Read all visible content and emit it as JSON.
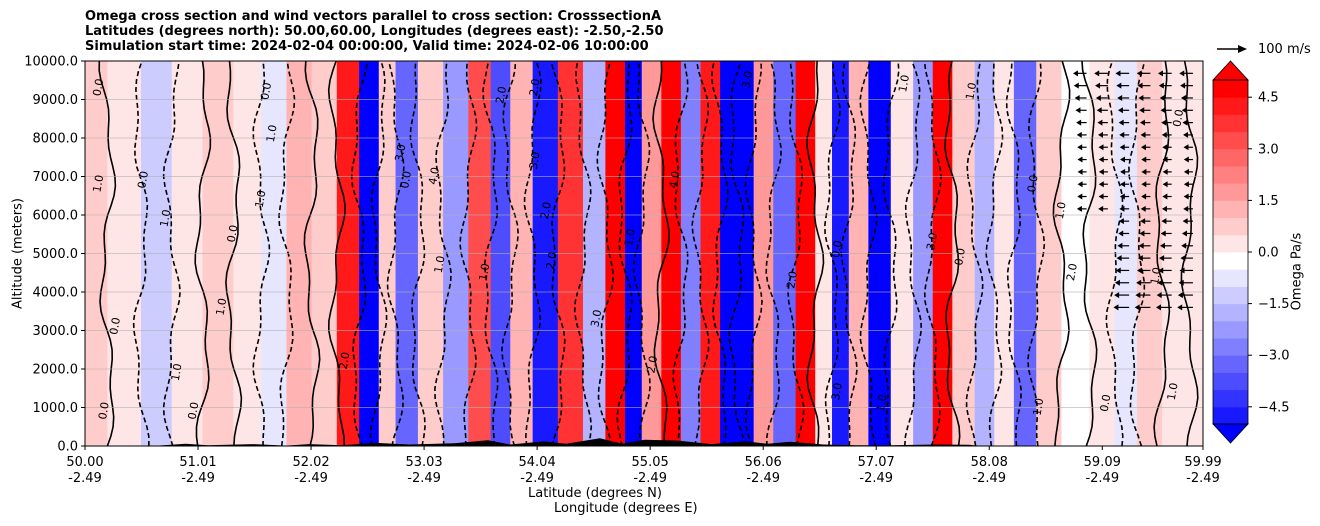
{
  "chart_data": {
    "type": "heatmap",
    "title_lines": [
      "Omega cross section and wind vectors parallel to cross section: CrosssectionA",
      "Latitudes (degrees north): 50.00,60.00, Longitudes (degrees east): -2.50,-2.50",
      "Simulation start time: 2024-02-04 00:00:00, Valid time: 2024-02-06 10:00:00"
    ],
    "xlabel": "Latitude (degrees N)",
    "xlabel2": "Longitude (degrees E)",
    "ylabel": "Altitude (meters)",
    "colorbar_label": "Omega Pa/s",
    "quiver_key": "100 m/s",
    "xlim": [
      50.0,
      59.99
    ],
    "ylim": [
      0,
      10000
    ],
    "x_ticks": [
      {
        "lat": "50.00",
        "lon": "-2.49",
        "value": 50.0
      },
      {
        "lat": "51.01",
        "lon": "-2.49",
        "value": 51.01
      },
      {
        "lat": "52.02",
        "lon": "-2.49",
        "value": 52.02
      },
      {
        "lat": "53.03",
        "lon": "-2.49",
        "value": 53.03
      },
      {
        "lat": "54.04",
        "lon": "-2.49",
        "value": 54.04
      },
      {
        "lat": "55.05",
        "lon": "-2.49",
        "value": 55.05
      },
      {
        "lat": "56.06",
        "lon": "-2.49",
        "value": 56.06
      },
      {
        "lat": "57.07",
        "lon": "-2.49",
        "value": 57.07
      },
      {
        "lat": "58.08",
        "lon": "-2.49",
        "value": 58.08
      },
      {
        "lat": "59.09",
        "lon": "-2.49",
        "value": 59.09
      },
      {
        "lat": "59.99",
        "lon": "-2.49",
        "value": 59.99
      }
    ],
    "y_ticks": [
      {
        "label": "0.0",
        "value": 0
      },
      {
        "label": "1000.0",
        "value": 1000
      },
      {
        "label": "2000.0",
        "value": 2000
      },
      {
        "label": "3000.0",
        "value": 3000
      },
      {
        "label": "4000.0",
        "value": 4000
      },
      {
        "label": "5000.0",
        "value": 5000
      },
      {
        "label": "6000.0",
        "value": 6000
      },
      {
        "label": "7000.0",
        "value": 7000
      },
      {
        "label": "8000.0",
        "value": 8000
      },
      {
        "label": "9000.0",
        "value": 9000
      },
      {
        "label": "10000.0",
        "value": 10000
      }
    ],
    "colorbar_ticks": [
      {
        "label": "4.5",
        "value": 4.5
      },
      {
        "label": "3.0",
        "value": 3.0
      },
      {
        "label": "1.5",
        "value": 1.5
      },
      {
        "label": "0.0",
        "value": 0.0
      },
      {
        "label": "−1.5",
        "value": -1.5
      },
      {
        "label": "−3.0",
        "value": -3.0
      },
      {
        "label": "−4.5",
        "value": -4.5
      }
    ],
    "colorbar_range": [
      -5.0,
      5.0
    ],
    "colormap": "bwr",
    "grid": "horizontal",
    "bands": [
      {
        "lat": 50.05,
        "value": 1.0
      },
      {
        "lat": 50.35,
        "value": 0.4
      },
      {
        "lat": 50.65,
        "value": -0.8
      },
      {
        "lat": 50.9,
        "value": 0.6
      },
      {
        "lat": 51.2,
        "value": 1.2
      },
      {
        "lat": 51.45,
        "value": 0.3
      },
      {
        "lat": 51.7,
        "value": -0.6
      },
      {
        "lat": 51.9,
        "value": 1.6
      },
      {
        "lat": 52.15,
        "value": 0.8
      },
      {
        "lat": 52.35,
        "value": 4.6
      },
      {
        "lat": 52.55,
        "value": -5.0
      },
      {
        "lat": 52.7,
        "value": 1.0
      },
      {
        "lat": 52.85,
        "value": -3.0
      },
      {
        "lat": 53.1,
        "value": 0.8
      },
      {
        "lat": 53.3,
        "value": -1.8
      },
      {
        "lat": 53.55,
        "value": 3.5
      },
      {
        "lat": 53.7,
        "value": -3.5
      },
      {
        "lat": 53.9,
        "value": 1.5
      },
      {
        "lat": 54.1,
        "value": -4.5
      },
      {
        "lat": 54.35,
        "value": 4.0
      },
      {
        "lat": 54.55,
        "value": -1.5
      },
      {
        "lat": 54.75,
        "value": 5.0
      },
      {
        "lat": 54.9,
        "value": -5.0
      },
      {
        "lat": 55.05,
        "value": 2.0
      },
      {
        "lat": 55.25,
        "value": 5.0
      },
      {
        "lat": 55.4,
        "value": -2.5
      },
      {
        "lat": 55.6,
        "value": 4.5
      },
      {
        "lat": 55.75,
        "value": -5.0
      },
      {
        "lat": 55.9,
        "value": -5.0
      },
      {
        "lat": 56.05,
        "value": 2.0
      },
      {
        "lat": 56.25,
        "value": -3.0
      },
      {
        "lat": 56.45,
        "value": 5.0
      },
      {
        "lat": 56.6,
        "value": 0.5
      },
      {
        "lat": 56.75,
        "value": -4.5
      },
      {
        "lat": 56.9,
        "value": 1.5
      },
      {
        "lat": 57.1,
        "value": -5.0
      },
      {
        "lat": 57.3,
        "value": 0.6
      },
      {
        "lat": 57.5,
        "value": -2.0
      },
      {
        "lat": 57.65,
        "value": 5.0
      },
      {
        "lat": 57.85,
        "value": 0.8
      },
      {
        "lat": 58.05,
        "value": -1.5
      },
      {
        "lat": 58.2,
        "value": 0.5
      },
      {
        "lat": 58.4,
        "value": -2.8
      },
      {
        "lat": 58.6,
        "value": 1.2
      },
      {
        "lat": 58.85,
        "value": 0.2
      },
      {
        "lat": 59.1,
        "value": 0.6
      },
      {
        "lat": 59.3,
        "value": -0.3
      },
      {
        "lat": 59.5,
        "value": 1.0
      },
      {
        "lat": 59.75,
        "value": 0.3
      },
      {
        "lat": 59.99,
        "value": 0.5
      }
    ],
    "contour_labels": [
      {
        "lat": 50.15,
        "alt": 9300,
        "text": "0.0"
      },
      {
        "lat": 50.15,
        "alt": 6800,
        "text": "1.0"
      },
      {
        "lat": 50.3,
        "alt": 3100,
        "text": "0.0"
      },
      {
        "lat": 50.2,
        "alt": 900,
        "text": "0.0"
      },
      {
        "lat": 50.55,
        "alt": 6900,
        "text": "0.0"
      },
      {
        "lat": 50.75,
        "alt": 5900,
        "text": "1.0"
      },
      {
        "lat": 50.85,
        "alt": 1900,
        "text": "1.0"
      },
      {
        "lat": 51.0,
        "alt": 900,
        "text": "0.0"
      },
      {
        "lat": 51.25,
        "alt": 3600,
        "text": "1.0"
      },
      {
        "lat": 51.35,
        "alt": 5500,
        "text": "0.0"
      },
      {
        "lat": 51.65,
        "alt": 9200,
        "text": "0.0"
      },
      {
        "lat": 51.6,
        "alt": 6400,
        "text": "1.0"
      },
      {
        "lat": 51.7,
        "alt": 8100,
        "text": "1.0"
      },
      {
        "lat": 52.35,
        "alt": 2200,
        "text": "2.0"
      },
      {
        "lat": 52.85,
        "alt": 7600,
        "text": "3.0"
      },
      {
        "lat": 52.9,
        "alt": 6900,
        "text": "0.0"
      },
      {
        "lat": 53.15,
        "alt": 7000,
        "text": "4.0"
      },
      {
        "lat": 53.2,
        "alt": 4700,
        "text": "1.0"
      },
      {
        "lat": 53.6,
        "alt": 4500,
        "text": "1.0"
      },
      {
        "lat": 53.75,
        "alt": 9100,
        "text": "2.0"
      },
      {
        "lat": 54.05,
        "alt": 9300,
        "text": "2.0"
      },
      {
        "lat": 54.05,
        "alt": 7400,
        "text": "3.0"
      },
      {
        "lat": 54.15,
        "alt": 6100,
        "text": "2.0"
      },
      {
        "lat": 54.2,
        "alt": 4800,
        "text": "2.0"
      },
      {
        "lat": 54.6,
        "alt": 3300,
        "text": "3.0"
      },
      {
        "lat": 54.9,
        "alt": 5400,
        "text": "1.0"
      },
      {
        "lat": 55.3,
        "alt": 6900,
        "text": "4.0"
      },
      {
        "lat": 55.1,
        "alt": 2100,
        "text": "2.0"
      },
      {
        "lat": 55.95,
        "alt": 9500,
        "text": "3.0"
      },
      {
        "lat": 56.35,
        "alt": 4300,
        "text": "2.0"
      },
      {
        "lat": 56.75,
        "alt": 5100,
        "text": "0.0"
      },
      {
        "lat": 56.75,
        "alt": 1400,
        "text": "3.0"
      },
      {
        "lat": 57.15,
        "alt": 1100,
        "text": "1.0"
      },
      {
        "lat": 57.35,
        "alt": 9400,
        "text": "1.0"
      },
      {
        "lat": 57.6,
        "alt": 5300,
        "text": "3.0"
      },
      {
        "lat": 57.85,
        "alt": 4900,
        "text": "0.0"
      },
      {
        "lat": 57.95,
        "alt": 9200,
        "text": "1.0"
      },
      {
        "lat": 58.5,
        "alt": 6800,
        "text": "0.0"
      },
      {
        "lat": 58.75,
        "alt": 6100,
        "text": "1.0"
      },
      {
        "lat": 58.85,
        "alt": 4500,
        "text": "2.0"
      },
      {
        "lat": 58.55,
        "alt": 1000,
        "text": "1.0"
      },
      {
        "lat": 59.15,
        "alt": 1100,
        "text": "0.0"
      },
      {
        "lat": 59.6,
        "alt": 4400,
        "text": "1.0"
      },
      {
        "lat": 59.75,
        "alt": 1400,
        "text": "1.0"
      },
      {
        "lat": 59.8,
        "alt": 8500,
        "text": "0.0"
      }
    ]
  }
}
